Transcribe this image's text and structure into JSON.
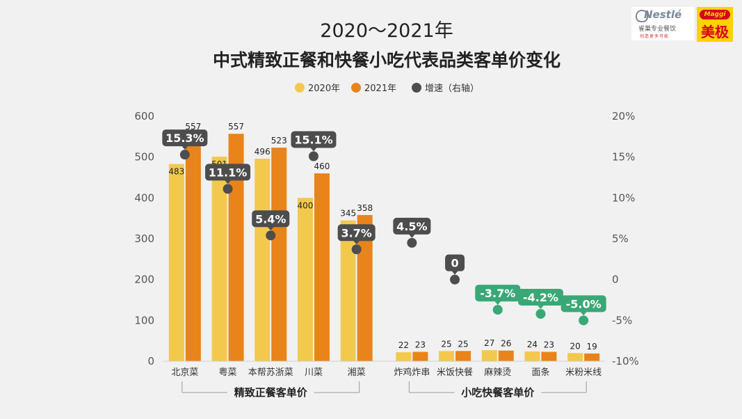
{
  "logos": {
    "nestle_brand": "Nestlé",
    "nestle_cn": "雀巢专业餐饮",
    "nestle_sub": "创造更多可能",
    "maggi_brand": "Maggi",
    "maggi_cn": "美极"
  },
  "chart_data": {
    "type": "bar",
    "title_line1": "2020～2021年",
    "title_line2": "中式精致正餐和快餐小吃代表品类客单价变化",
    "categories": [
      "北京菜",
      "粤菜",
      "本帮苏浙菜",
      "川菜",
      "湘菜",
      "炸鸡炸串",
      "米饭快餐",
      "麻辣烫",
      "面条",
      "米粉米线"
    ],
    "series": [
      {
        "name": "2020年",
        "values": [
          483,
          501,
          496,
          400,
          345,
          22,
          25,
          27,
          24,
          20
        ],
        "color": "#f2c94c"
      },
      {
        "name": "2021年",
        "values": [
          557,
          557,
          523,
          460,
          358,
          23,
          25,
          26,
          23,
          19
        ],
        "color": "#e8841a"
      }
    ],
    "growth": {
      "name": "增速（右轴）",
      "values": [
        15.3,
        11.1,
        5.4,
        15.1,
        3.7,
        4.5,
        0,
        -3.7,
        -4.2,
        -5.0
      ],
      "labels": [
        "15.3%",
        "11.1%",
        "5.4%",
        "15.1%",
        "3.7%",
        "4.5%",
        "0",
        "-3.7%",
        "-4.2%",
        "-5.0%"
      ],
      "color": "#4d4d4d",
      "negative_color": "#3aa876"
    },
    "left_axis": {
      "ylim": [
        0,
        600
      ],
      "ticks": [
        "0",
        "100",
        "200",
        "300",
        "400",
        "500",
        "600"
      ]
    },
    "right_axis": {
      "ylim": [
        -10,
        20
      ],
      "ticks": [
        "-10%",
        "-5%",
        "0",
        "5%",
        "10%",
        "15%",
        "20%"
      ]
    },
    "groups": [
      {
        "label": "精致正餐客单价",
        "from": 0,
        "to": 4
      },
      {
        "label": "小吃快餐客单价",
        "from": 5,
        "to": 9
      }
    ],
    "legend_position": "top-center"
  }
}
